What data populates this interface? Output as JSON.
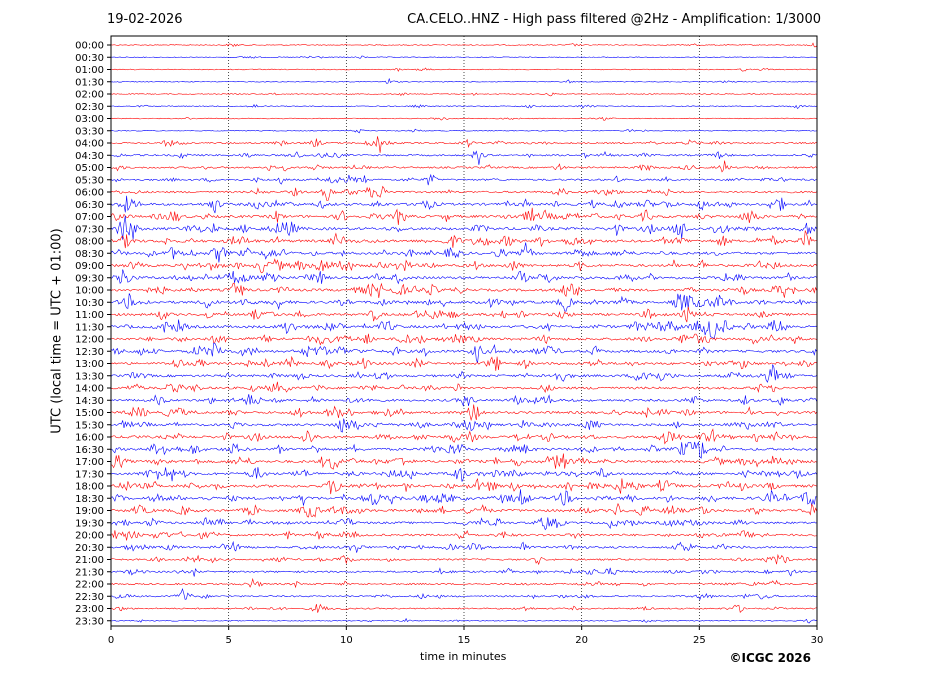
{
  "header": {
    "date": "19-02-2026",
    "title": "CA.CELO..HNZ - High pass filtered @2Hz - Amplification: 1/3000"
  },
  "footer": {
    "copyright": "©ICGC 2026"
  },
  "chart_data": {
    "type": "line",
    "title": "CA.CELO..HNZ - High pass filtered @2Hz - Amplification: 1/3000",
    "xlabel": "time in minutes",
    "ylabel": "UTC (local time = UTC + 01:00)",
    "xlim": [
      0,
      30
    ],
    "x_ticks": [
      0,
      5,
      10,
      15,
      20,
      25,
      30
    ],
    "x_tick_labels": [
      "0",
      "5",
      "10",
      "15",
      "20",
      "25",
      "30"
    ],
    "x_grid": "dotted vertical lines at 5-minute intervals",
    "trace_colors": [
      "#ff0000",
      "#0000ff"
    ],
    "rows": [
      "00:00",
      "00:30",
      "01:00",
      "01:30",
      "02:00",
      "02:30",
      "03:00",
      "03:30",
      "04:00",
      "04:30",
      "05:00",
      "05:30",
      "06:00",
      "06:30",
      "07:00",
      "07:30",
      "08:00",
      "08:30",
      "09:00",
      "09:30",
      "10:00",
      "10:30",
      "11:00",
      "11:30",
      "12:00",
      "12:30",
      "13:00",
      "13:30",
      "14:00",
      "14:30",
      "15:00",
      "15:30",
      "16:00",
      "16:30",
      "17:00",
      "17:30",
      "18:00",
      "18:30",
      "19:00",
      "19:30",
      "20:00",
      "20:30",
      "21:00",
      "21:30",
      "22:00",
      "22:30",
      "23:00",
      "23:30"
    ],
    "row_activity": [
      0.1,
      0.1,
      0.1,
      0.1,
      0.1,
      0.15,
      0.1,
      0.1,
      0.35,
      0.4,
      0.45,
      0.45,
      0.5,
      0.7,
      0.75,
      0.8,
      0.8,
      0.75,
      0.75,
      0.8,
      0.75,
      0.75,
      0.7,
      0.8,
      0.75,
      0.75,
      0.7,
      0.7,
      0.65,
      0.65,
      0.7,
      0.7,
      0.75,
      0.75,
      0.75,
      0.75,
      0.8,
      0.8,
      0.75,
      0.6,
      0.6,
      0.55,
      0.45,
      0.45,
      0.4,
      0.35,
      0.3,
      0.15
    ]
  }
}
